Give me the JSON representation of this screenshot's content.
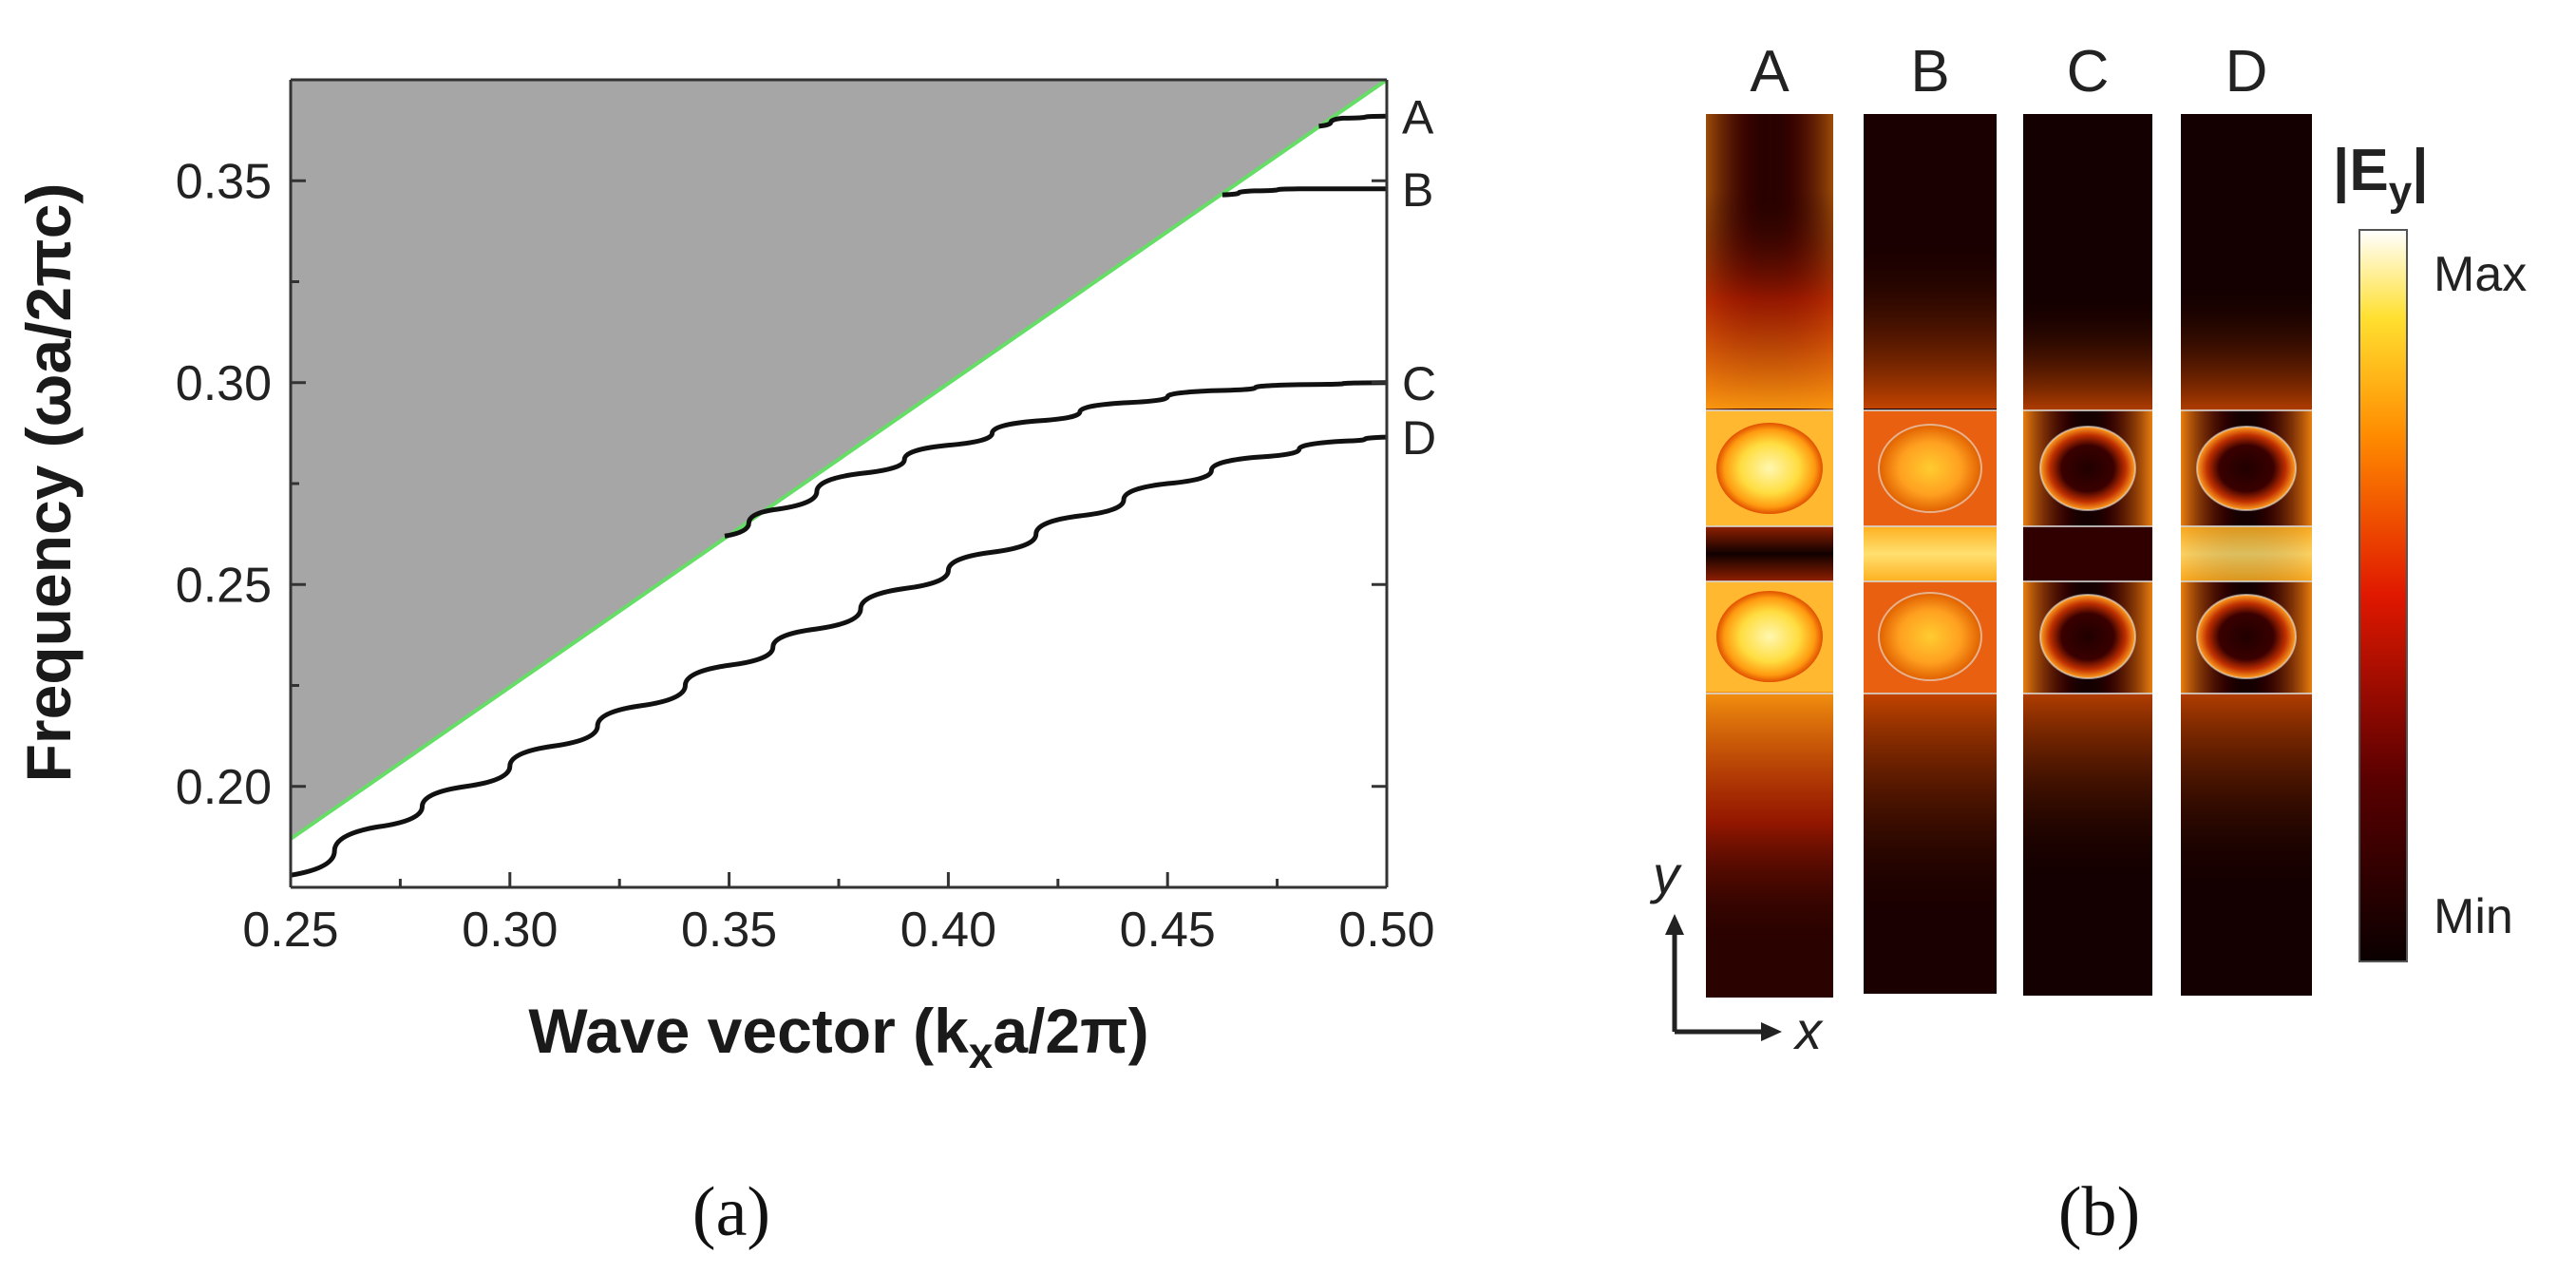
{
  "chart_data": [
    {
      "type": "line",
      "panel": "(a)",
      "xlabel": "Wave vector (kxa/2π)",
      "xlabel_parts": {
        "before": "Wave vector (k",
        "sub": "x",
        "after": "a/2π)"
      },
      "ylabel": "Frequency (ωa/2πc)",
      "xlim": [
        0.25,
        0.5
      ],
      "ylim": [
        0.175,
        0.375
      ],
      "xticks": [
        "0.25",
        "0.30",
        "0.35",
        "0.40",
        "0.45",
        "0.50"
      ],
      "xtick_values": [
        0.25,
        0.3,
        0.35,
        0.4,
        0.45,
        0.5
      ],
      "yticks": [
        "0.20",
        "0.25",
        "0.30",
        "0.35"
      ],
      "ytick_values": [
        0.2,
        0.25,
        0.3,
        0.35
      ],
      "light_cone": {
        "x": [
          0.25,
          0.5
        ],
        "y": [
          0.187,
          0.375
        ],
        "line_color": "#66dd66",
        "fill_color": "#a6a6a6"
      },
      "series": [
        {
          "name": "A",
          "x": [
            0.4845,
            0.49,
            0.5
          ],
          "y": [
            0.3635,
            0.3655,
            0.366
          ]
        },
        {
          "name": "B",
          "x": [
            0.4625,
            0.47,
            0.48,
            0.49,
            0.5
          ],
          "y": [
            0.3465,
            0.3475,
            0.348,
            0.348,
            0.348
          ]
        },
        {
          "name": "C",
          "x": [
            0.349,
            0.36,
            0.38,
            0.4,
            0.42,
            0.44,
            0.46,
            0.48,
            0.5
          ],
          "y": [
            0.262,
            0.2685,
            0.2775,
            0.2845,
            0.2905,
            0.295,
            0.298,
            0.2995,
            0.3
          ]
        },
        {
          "name": "D",
          "x": [
            0.25,
            0.27,
            0.29,
            0.31,
            0.33,
            0.35,
            0.37,
            0.39,
            0.41,
            0.43,
            0.45,
            0.47,
            0.49,
            0.5
          ],
          "y": [
            0.178,
            0.19,
            0.2,
            0.21,
            0.22,
            0.23,
            0.239,
            0.249,
            0.258,
            0.267,
            0.275,
            0.2815,
            0.2855,
            0.2865
          ]
        }
      ]
    },
    {
      "type": "heatmap",
      "panel": "(b)",
      "modes": [
        "A",
        "B",
        "C",
        "D"
      ],
      "colorbar": {
        "title": "|Ey|",
        "title_parts": {
          "before": "|E",
          "sub": "y",
          "after": "|"
        },
        "max_label": "Max",
        "min_label": "Min"
      },
      "axes": {
        "x": "x",
        "y": "y"
      }
    }
  ],
  "captions": {
    "a": "(a)",
    "b": "(b)"
  }
}
